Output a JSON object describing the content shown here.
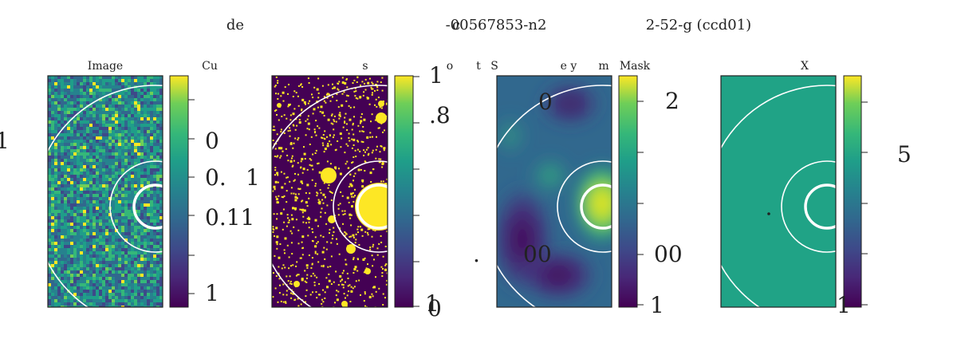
{
  "figure": {
    "title_fragments": [
      {
        "id": "t1",
        "text": "de"
      },
      {
        "id": "t2",
        "text": "-00567853-n2"
      },
      {
        "id": "t3",
        "text": "c"
      },
      {
        "id": "t4",
        "text": "2-52-g (ccd01)"
      }
    ],
    "panel_label_fragments": [
      {
        "id": "p1",
        "text": "Image"
      },
      {
        "id": "p2",
        "text": "Cu"
      },
      {
        "id": "p3",
        "text": "s"
      },
      {
        "id": "p4",
        "text": "o"
      },
      {
        "id": "p5",
        "text": "t"
      },
      {
        "id": "p6",
        "text": "S"
      },
      {
        "id": "p7",
        "text": "e y"
      },
      {
        "id": "p8",
        "text": "m"
      },
      {
        "id": "p9",
        "text": "Mask"
      },
      {
        "id": "p10",
        "text": "X"
      }
    ],
    "tick_fragments": [
      {
        "id": "k1",
        "text": "1"
      },
      {
        "id": "k2",
        "text": "0"
      },
      {
        "id": "k3",
        "text": "0."
      },
      {
        "id": "k4",
        "text": "1"
      },
      {
        "id": "k5",
        "text": "0.11"
      },
      {
        "id": "k6",
        "text": "1"
      },
      {
        "id": "k7",
        "text": "1"
      },
      {
        "id": "k8",
        "text": ".8"
      },
      {
        "id": "k9",
        "text": "0"
      },
      {
        "id": "k10",
        "text": "1"
      },
      {
        "id": "k11",
        "text": "0"
      },
      {
        "id": "k12",
        "text": "00"
      },
      {
        "id": "k13",
        "text": "."
      },
      {
        "id": "k14",
        "text": "2"
      },
      {
        "id": "k15",
        "text": "00"
      },
      {
        "id": "k16",
        "text": "1"
      },
      {
        "id": "k17",
        "text": "5"
      },
      {
        "id": "k18",
        "text": "1"
      }
    ]
  },
  "chart_data": {
    "type": "heatmap",
    "colormap": "viridis",
    "colors": {
      "cmap_low": "#440154",
      "cmap_mid": "#21918c",
      "cmap_high": "#fde725",
      "overlay": "#ffffff",
      "frame": "#222222"
    },
    "panels": [
      {
        "id": "image",
        "label": "Image",
        "content": "noise",
        "colorbar_ticks": 5
      },
      {
        "id": "mask",
        "label": "",
        "content": "binary-mask",
        "colorbar_ticks": 5
      },
      {
        "id": "sky",
        "label": "",
        "content": "smooth-background",
        "colorbar_ticks": 4
      },
      {
        "id": "residual",
        "label": "X",
        "content": "uniform",
        "colorbar_ticks": 4
      }
    ]
  }
}
